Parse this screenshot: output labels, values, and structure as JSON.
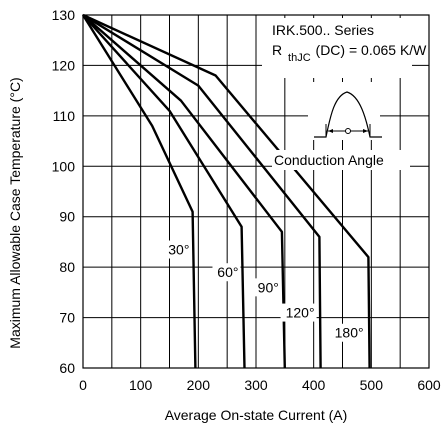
{
  "chart_data": {
    "type": "line",
    "title": "",
    "xlabel": "Average On-state Current (A)",
    "ylabel": "Maximum Allowable Case Temperature (°C)",
    "xlim": [
      0,
      600
    ],
    "ylim": [
      60,
      130
    ],
    "xticks": [
      0,
      100,
      200,
      300,
      400,
      500,
      600
    ],
    "yticks": [
      60,
      70,
      80,
      90,
      100,
      110,
      120,
      130
    ],
    "grid": true,
    "annotations": {
      "series_name": "IRK.500.. Series",
      "rth_prefix": "R",
      "rth_sub": "thJC",
      "rth_value": "(DC) = 0.065 K/W",
      "conduction_label": "Conduction Angle"
    },
    "series": [
      {
        "name": "30°",
        "label": "30°",
        "points": [
          [
            0,
            130
          ],
          [
            120,
            108
          ],
          [
            190,
            91
          ],
          [
            195,
            60
          ]
        ]
      },
      {
        "name": "60°",
        "label": "60°",
        "points": [
          [
            0,
            130
          ],
          [
            150,
            111
          ],
          [
            275,
            88
          ],
          [
            280,
            60
          ]
        ]
      },
      {
        "name": "90°",
        "label": "90°",
        "points": [
          [
            0,
            130
          ],
          [
            170,
            113
          ],
          [
            345,
            87
          ],
          [
            350,
            60
          ]
        ]
      },
      {
        "name": "120°",
        "label": "120°",
        "points": [
          [
            0,
            130
          ],
          [
            200,
            116
          ],
          [
            410,
            86
          ],
          [
            412,
            60
          ]
        ]
      },
      {
        "name": "180°",
        "label": "180°",
        "points": [
          [
            0,
            130
          ],
          [
            230,
            118
          ],
          [
            495,
            82
          ],
          [
            497,
            60
          ]
        ]
      }
    ]
  }
}
